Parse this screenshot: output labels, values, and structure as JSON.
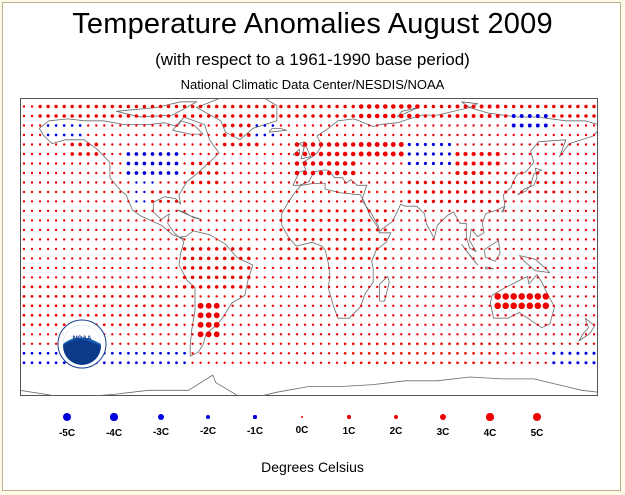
{
  "title": "Temperature Anomalies August 2009",
  "subtitle": "(with respect to a 1961-1990 base period)",
  "source": "National Climatic Data Center/NESDIS/NOAA",
  "logo": {
    "icon": "noaa-logo",
    "text": "NOAA",
    "ring_text": "NATIONAL OCEANIC AND ATMOSPHERIC ADMINISTRATION · U.S. DEPARTMENT OF COMMERCE"
  },
  "colors": {
    "warm": "#ee0000",
    "cold": "#0000dd",
    "coast": "#666666"
  },
  "legend": {
    "units_label": "Degrees Celsius",
    "items": [
      {
        "label": "-5C",
        "value": -5
      },
      {
        "label": "-4C",
        "value": -4
      },
      {
        "label": "-3C",
        "value": -3
      },
      {
        "label": "-2C",
        "value": -2
      },
      {
        "label": "-1C",
        "value": -1
      },
      {
        "label": "0C",
        "value": 0
      },
      {
        "label": "1C",
        "value": 1
      },
      {
        "label": "2C",
        "value": 2
      },
      {
        "label": "3C",
        "value": 3
      },
      {
        "label": "4C",
        "value": 4
      },
      {
        "label": "5C",
        "value": 5
      }
    ]
  },
  "chart_data": {
    "type": "scatter",
    "x_unit": "degrees longitude",
    "y_unit": "degrees latitude",
    "value_unit": "°C anomaly",
    "grid_step_deg": 5,
    "background_anomaly": 0.8,
    "regions": [
      {
        "lon": [
          -170,
          180
        ],
        "lat": [
          72,
          82
        ],
        "anomaly": 1.7
      },
      {
        "lon": [
          30,
          70
        ],
        "lat": [
          68,
          80
        ],
        "anomaly": 2.6
      },
      {
        "lon": [
          90,
          120
        ],
        "lat": [
          72,
          80
        ],
        "anomaly": 2.0
      },
      {
        "lon": [
          125,
          150
        ],
        "lat": [
          65,
          75
        ],
        "anomaly": -2.0
      },
      {
        "lon": [
          -165,
          -140
        ],
        "lat": [
          60,
          70
        ],
        "anomaly": -1.0
      },
      {
        "lon": [
          -150,
          -130
        ],
        "lat": [
          50,
          60
        ],
        "anomaly": 1.8
      },
      {
        "lon": [
          -115,
          -80
        ],
        "lat": [
          40,
          55
        ],
        "anomaly": -1.8
      },
      {
        "lon": [
          -110,
          -95
        ],
        "lat": [
          25,
          40
        ],
        "anomaly": -0.8
      },
      {
        "lon": [
          -100,
          -80
        ],
        "lat": [
          25,
          35
        ],
        "anomaly": 1.3
      },
      {
        "lon": [
          -75,
          -55
        ],
        "lat": [
          35,
          50
        ],
        "anomaly": 1.6
      },
      {
        "lon": [
          -55,
          -30
        ],
        "lat": [
          55,
          70
        ],
        "anomaly": 1.8
      },
      {
        "lon": [
          -35,
          -20
        ],
        "lat": [
          60,
          70
        ],
        "anomaly": -1.0
      },
      {
        "lon": [
          -10,
          30
        ],
        "lat": [
          40,
          60
        ],
        "anomaly": 2.5
      },
      {
        "lon": [
          30,
          60
        ],
        "lat": [
          48,
          62
        ],
        "anomaly": 2.8
      },
      {
        "lon": [
          60,
          90
        ],
        "lat": [
          45,
          60
        ],
        "anomaly": -1.4
      },
      {
        "lon": [
          90,
          120
        ],
        "lat": [
          40,
          55
        ],
        "anomaly": 2.2
      },
      {
        "lon": [
          60,
          120
        ],
        "lat": [
          25,
          40
        ],
        "anomaly": 1.6
      },
      {
        "lon": [
          -20,
          50
        ],
        "lat": [
          -5,
          25
        ],
        "anomaly": 1.3
      },
      {
        "lon": [
          110,
          160
        ],
        "lat": [
          30,
          45
        ],
        "anomaly": 1.3
      },
      {
        "lon": [
          -80,
          -35
        ],
        "lat": [
          -20,
          5
        ],
        "anomaly": 1.7
      },
      {
        "lon": [
          -70,
          -55
        ],
        "lat": [
          -45,
          -25
        ],
        "anomaly": 3.6
      },
      {
        "lon": [
          -180,
          -80
        ],
        "lat": [
          -40,
          -15
        ],
        "anomaly": 1.1
      },
      {
        "lon": [
          115,
          150
        ],
        "lat": [
          -32,
          -18
        ],
        "anomaly": 4.2
      },
      {
        "lon": [
          -180,
          -75
        ],
        "lat": [
          -65,
          -50
        ],
        "anomaly": -1.1
      },
      {
        "lon": [
          150,
          180
        ],
        "lat": [
          -65,
          -50
        ],
        "anomaly": -1.3
      },
      {
        "lon": [
          20,
          120
        ],
        "lat": [
          -60,
          -45
        ],
        "anomaly": 1.0
      }
    ]
  }
}
